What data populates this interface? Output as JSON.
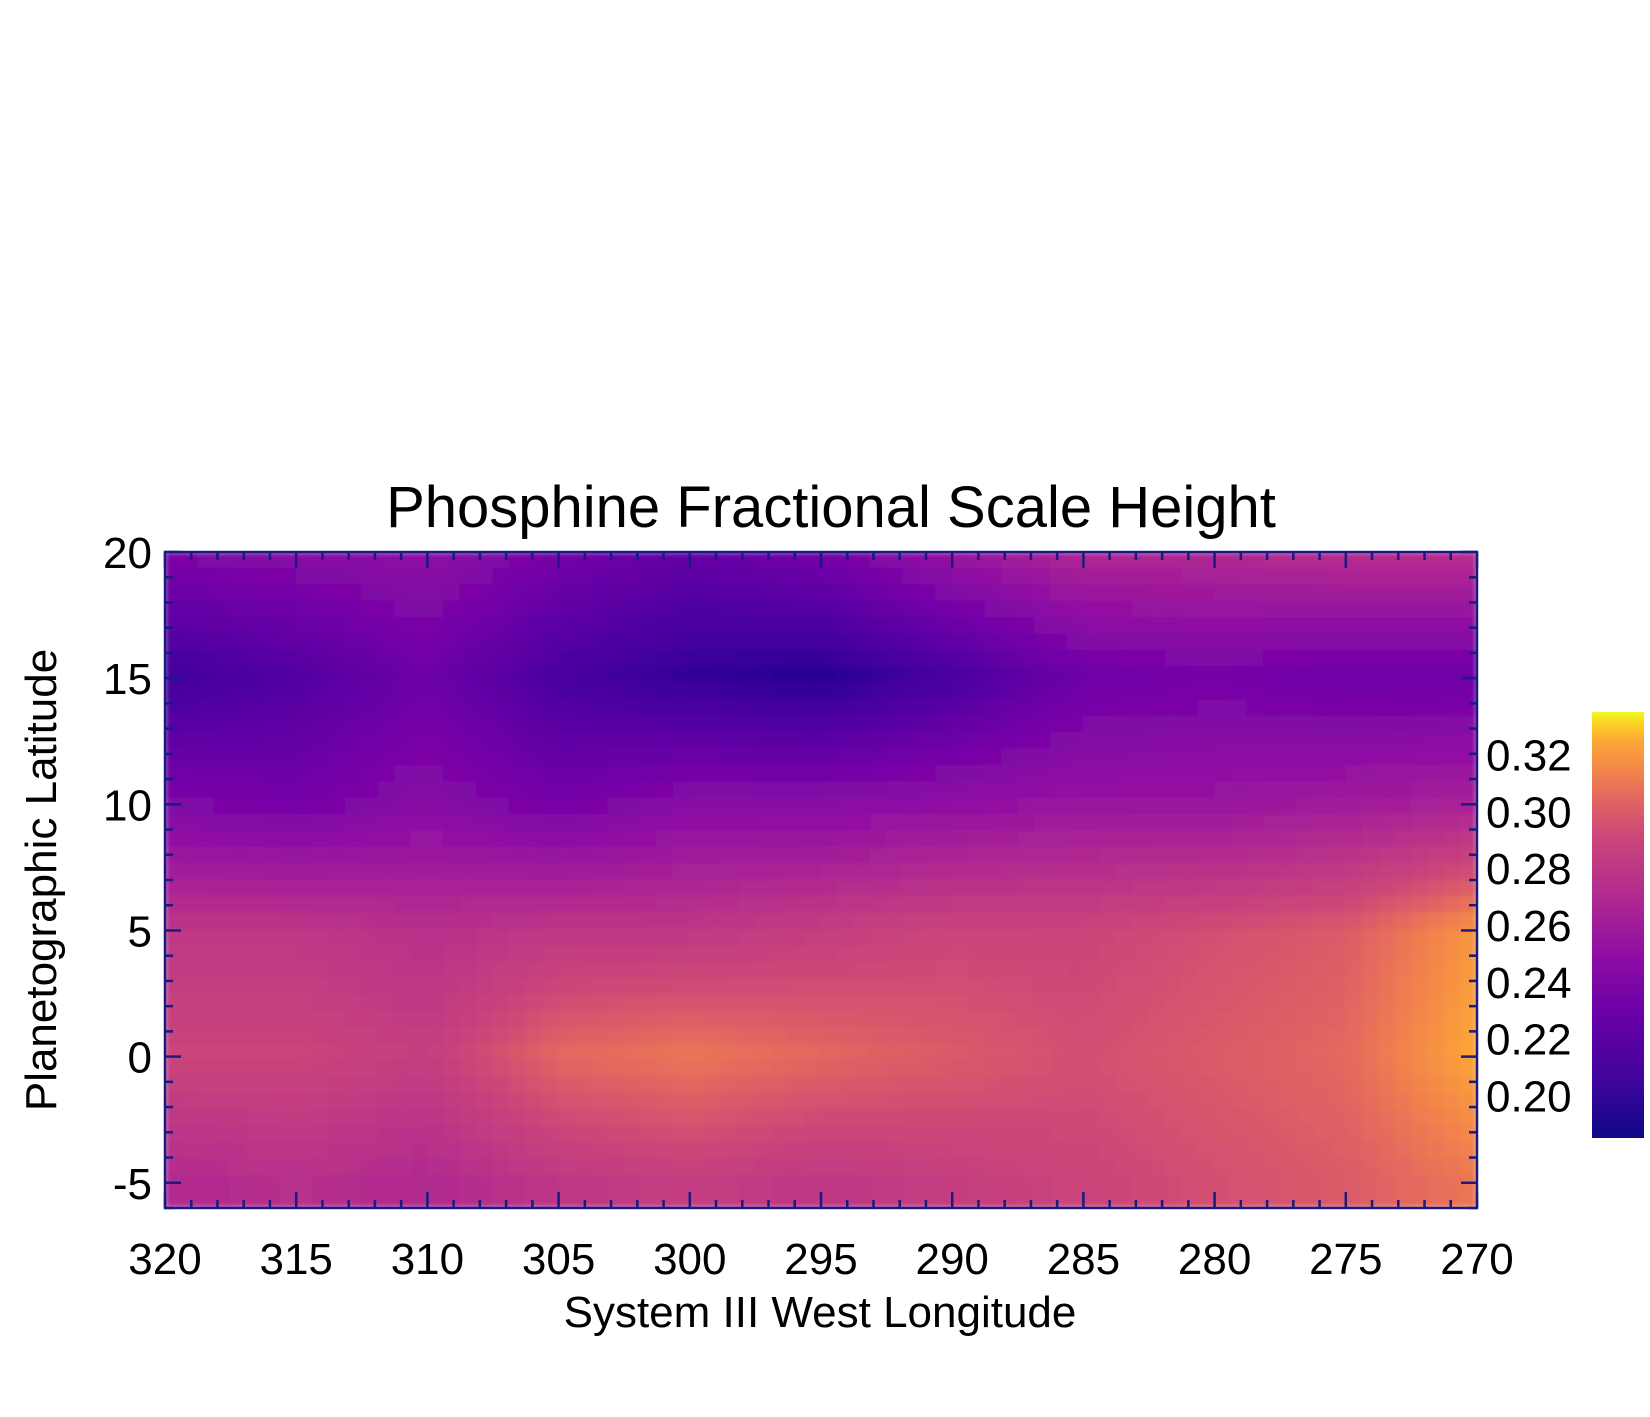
{
  "chart_data": {
    "type": "heatmap",
    "title": "Phosphine Fractional Scale Height",
    "xlabel": "System III West Longitude",
    "ylabel": "Planetographic Latitude",
    "xlim": [
      320,
      270
    ],
    "ylim": [
      -6,
      20
    ],
    "x_ticks": [
      320,
      315,
      310,
      305,
      300,
      295,
      290,
      285,
      280,
      275,
      270
    ],
    "x_tick_labels": [
      "320",
      "315",
      "310",
      "305",
      "300",
      "295",
      "290",
      "285",
      "280",
      "275",
      "270"
    ],
    "y_ticks": [
      -5,
      0,
      5,
      10,
      15,
      20
    ],
    "y_tick_labels": [
      "-5",
      "0",
      "5",
      "10",
      "15",
      "20"
    ],
    "colormap": "plasma",
    "colorbar": {
      "range": [
        0.185,
        0.335
      ],
      "ticks": [
        0.2,
        0.22,
        0.24,
        0.26,
        0.28,
        0.3,
        0.32
      ],
      "tick_labels": [
        "0.20",
        "0.22",
        "0.24",
        "0.26",
        "0.28",
        "0.30",
        "0.32"
      ]
    },
    "longitudes": [
      320,
      315,
      310,
      305,
      300,
      295,
      290,
      285,
      280,
      275,
      270
    ],
    "latitudes": [
      20,
      15,
      10,
      5,
      0,
      -5
    ],
    "values": [
      [
        0.24,
        0.245,
        0.25,
        0.235,
        0.225,
        0.235,
        0.255,
        0.27,
        0.27,
        0.275,
        0.275
      ],
      [
        0.205,
        0.215,
        0.23,
        0.21,
        0.2,
        0.195,
        0.21,
        0.23,
        0.235,
        0.23,
        0.23
      ],
      [
        0.24,
        0.235,
        0.245,
        0.235,
        0.245,
        0.245,
        0.25,
        0.255,
        0.255,
        0.26,
        0.265
      ],
      [
        0.28,
        0.28,
        0.275,
        0.28,
        0.28,
        0.285,
        0.29,
        0.29,
        0.295,
        0.3,
        0.32
      ],
      [
        0.29,
        0.29,
        0.285,
        0.305,
        0.31,
        0.305,
        0.3,
        0.295,
        0.3,
        0.305,
        0.325
      ],
      [
        0.27,
        0.275,
        0.27,
        0.28,
        0.285,
        0.28,
        0.285,
        0.29,
        0.295,
        0.3,
        0.31
      ]
    ]
  }
}
